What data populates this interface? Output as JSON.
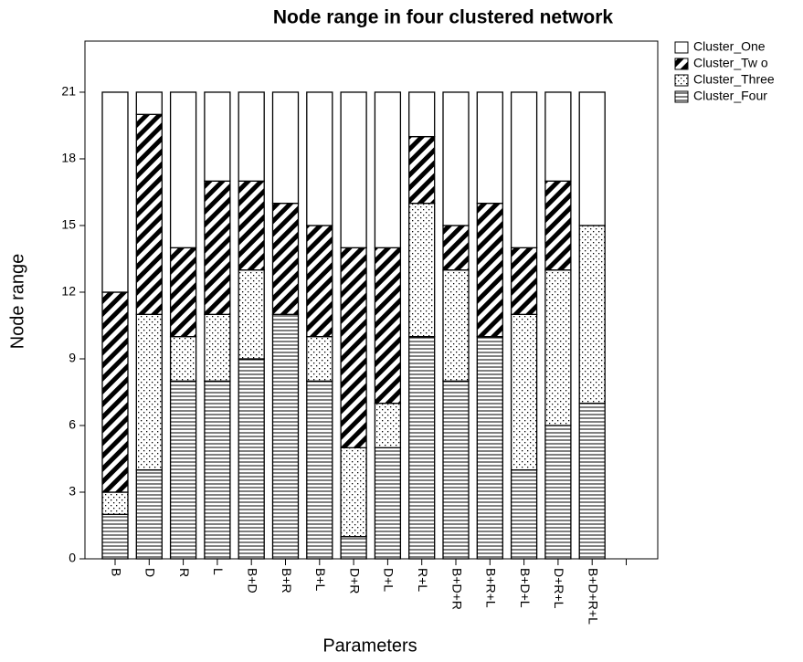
{
  "chart_data": {
    "type": "stacked_bar",
    "title": "Node range in four clustered network",
    "x_label": "Parameters",
    "y_label": "Node range",
    "categories": [
      "B",
      "D",
      "R",
      "L",
      "B+D",
      "B+R",
      "B+L",
      "D+R",
      "D+L",
      "R+L",
      "B+D+R",
      "B+R+L",
      "B+D+L",
      "D+R+L",
      "B+D+R+L",
      null
    ],
    "series": [
      {
        "name": "Cluster_One",
        "color": "#ffffff",
        "pattern": "none",
        "values": [
          9,
          1,
          7,
          4,
          4,
          5,
          6,
          7,
          7,
          2,
          6,
          5,
          7,
          4,
          6,
          null
        ]
      },
      {
        "name": "Cluster_Tw o",
        "color": "#ffffff",
        "pattern": "diagonal",
        "values": [
          9,
          9,
          4,
          6,
          4,
          5,
          5,
          9,
          7,
          3,
          2,
          6,
          3,
          4,
          0,
          null
        ]
      },
      {
        "name": "Cluster_Three",
        "color": "#ffffff",
        "pattern": "dots",
        "values": [
          1,
          7,
          2,
          3,
          4,
          0,
          2,
          4,
          2,
          6,
          5,
          0,
          7,
          7,
          8,
          null
        ]
      },
      {
        "name": "Cluster_Four",
        "color": "#ffffff",
        "pattern": "horizontal",
        "values": [
          2,
          4,
          8,
          8,
          9,
          11,
          8,
          1,
          5,
          10,
          8,
          10,
          4,
          6,
          7,
          null
        ]
      }
    ],
    "ylim": [
      0,
      23.3
    ],
    "yticks": [
      0,
      3,
      6,
      9,
      12,
      15,
      18,
      21
    ],
    "grid": false,
    "legend": "top-right"
  }
}
